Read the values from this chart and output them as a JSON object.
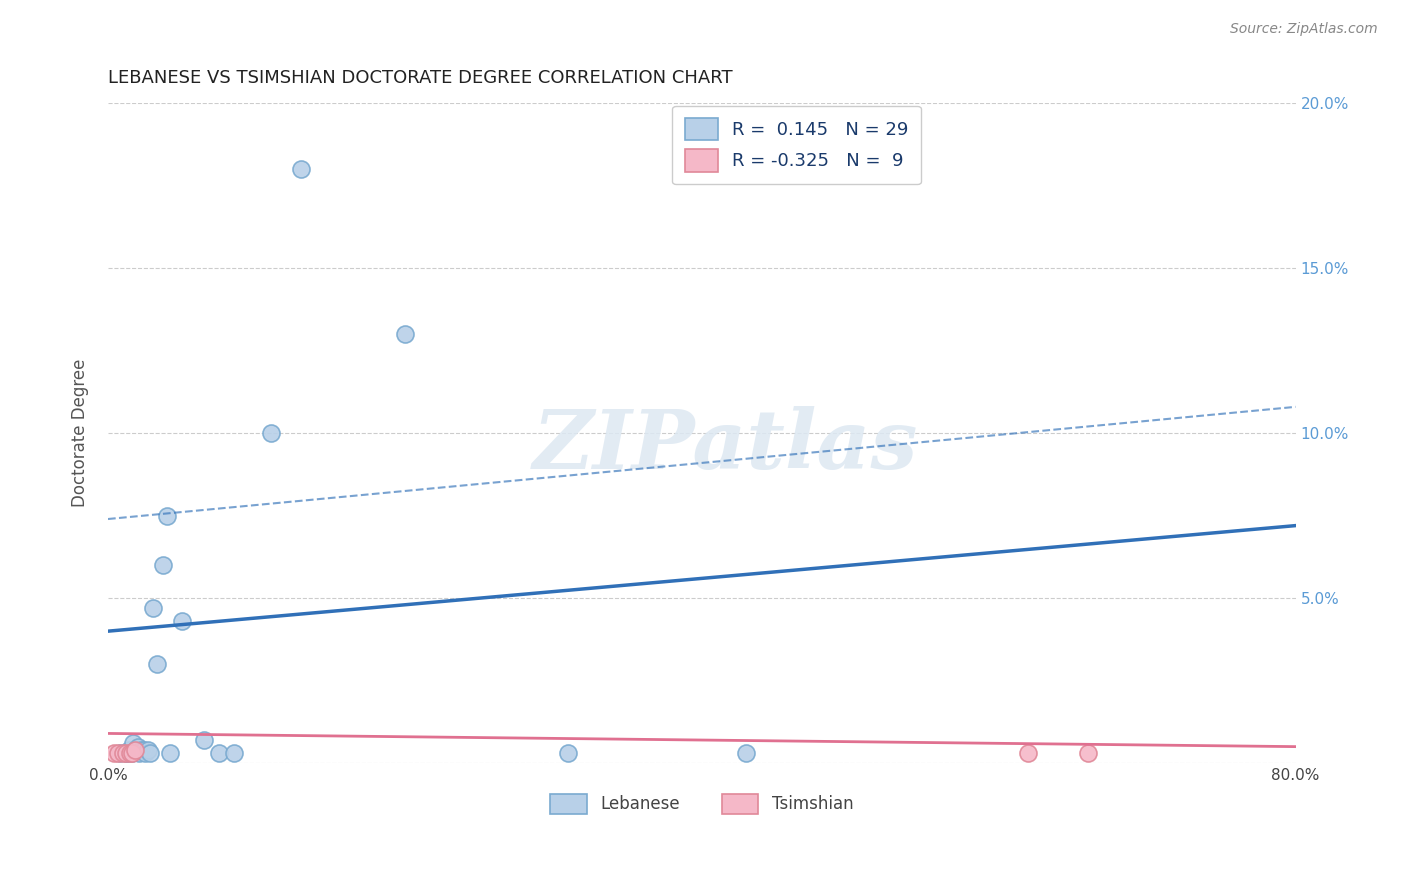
{
  "title": "LEBANESE VS TSIMSHIAN DOCTORATE DEGREE CORRELATION CHART",
  "source": "Source: ZipAtlas.com",
  "ylabel": "Doctorate Degree",
  "xlabel": "",
  "xlim": [
    0.0,
    0.8
  ],
  "ylim": [
    0.0,
    0.2
  ],
  "xticks": [
    0.0,
    0.2,
    0.4,
    0.6,
    0.8
  ],
  "yticks_right": [
    0.0,
    0.05,
    0.1,
    0.15,
    0.2
  ],
  "ytick_labels_right": [
    "",
    "5.0%",
    "10.0%",
    "15.0%",
    "20.0%"
  ],
  "xtick_labels": [
    "0.0%",
    "",
    "",
    "",
    "80.0%"
  ],
  "r_lebanese": 0.145,
  "n_lebanese": 29,
  "r_tsimshian": -0.325,
  "n_tsimshian": 9,
  "lebanese_color": "#b8d0e8",
  "lebanese_edge_color": "#7aaad0",
  "lebanese_line_color": "#3070b8",
  "tsimshian_color": "#f5b8c8",
  "tsimshian_edge_color": "#e08898",
  "tsimshian_line_color": "#e07090",
  "watermark_text": "ZIPatlas",
  "lebanese_x": [
    0.008,
    0.012,
    0.013,
    0.014,
    0.016,
    0.017,
    0.018,
    0.019,
    0.02,
    0.021,
    0.022,
    0.024,
    0.025,
    0.027,
    0.028,
    0.03,
    0.033,
    0.037,
    0.04,
    0.042,
    0.05,
    0.065,
    0.075,
    0.085,
    0.11,
    0.13,
    0.2,
    0.31,
    0.43
  ],
  "lebanese_y": [
    0.003,
    0.003,
    0.003,
    0.004,
    0.003,
    0.006,
    0.004,
    0.004,
    0.005,
    0.003,
    0.004,
    0.004,
    0.003,
    0.004,
    0.003,
    0.047,
    0.03,
    0.06,
    0.075,
    0.003,
    0.043,
    0.007,
    0.003,
    0.003,
    0.1,
    0.18,
    0.13,
    0.003,
    0.003
  ],
  "tsimshian_x": [
    0.004,
    0.007,
    0.01,
    0.012,
    0.015,
    0.016,
    0.018,
    0.62,
    0.66
  ],
  "tsimshian_y": [
    0.003,
    0.003,
    0.003,
    0.003,
    0.003,
    0.003,
    0.004,
    0.003,
    0.003
  ],
  "blue_line_x0": 0.0,
  "blue_line_y0": 0.04,
  "blue_line_x1": 0.8,
  "blue_line_y1": 0.072,
  "pink_line_x0": 0.0,
  "pink_line_y0": 0.009,
  "pink_line_x1": 0.8,
  "pink_line_y1": 0.005,
  "dash_line_x0": 0.0,
  "dash_line_y0": 0.074,
  "dash_line_x1": 0.8,
  "dash_line_y1": 0.108,
  "background_color": "#ffffff",
  "grid_color": "#cccccc"
}
